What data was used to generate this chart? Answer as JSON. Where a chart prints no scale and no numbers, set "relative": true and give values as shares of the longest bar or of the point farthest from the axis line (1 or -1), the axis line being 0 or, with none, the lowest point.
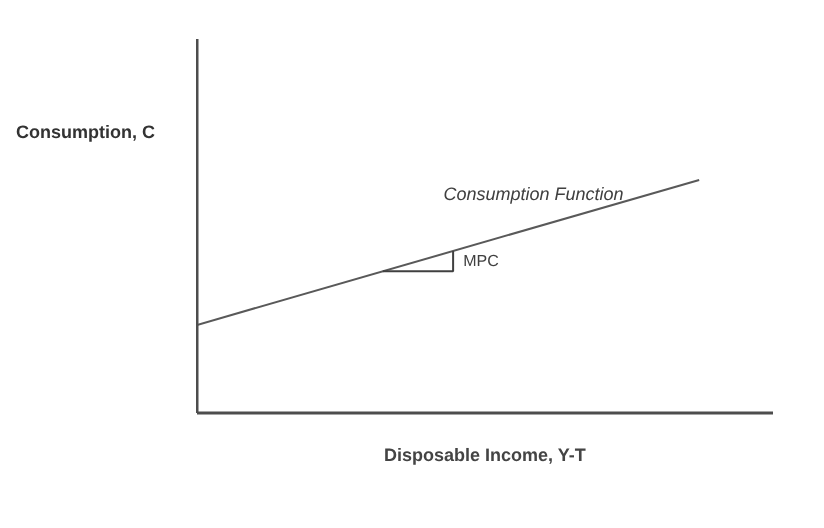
{
  "chart_data": {
    "type": "line",
    "relative": true,
    "xlabel": "Disposable Income, Y-T",
    "ylabel": "Consumption, C",
    "categories": [
      null,
      null
    ],
    "series": [
      {
        "color": "#595959",
        "values": [
          0.378,
          1
        ]
      }
    ],
    "annotations": [
      "Consumption Function",
      "MPC"
    ],
    "grid": false
  }
}
